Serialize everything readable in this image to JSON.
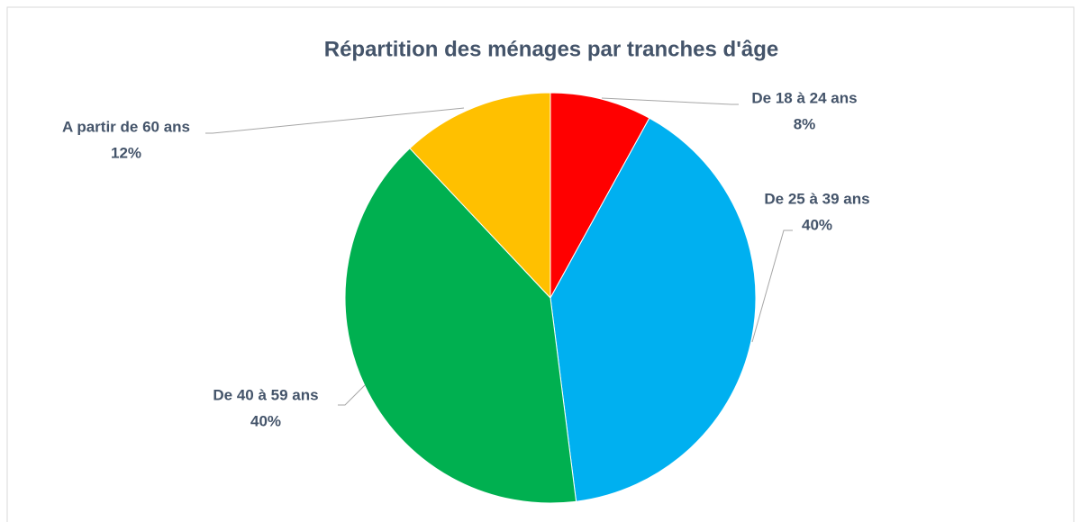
{
  "chart_data": {
    "type": "pie",
    "title": "Répartition des ménages par tranches d'âge",
    "categories": [
      "De 18 à 24 ans",
      "De 25 à 39 ans",
      "De 40 à 59 ans",
      "A partir de 60 ans"
    ],
    "values": [
      8,
      40,
      40,
      12
    ],
    "value_labels": [
      "8%",
      "40%",
      "40%",
      "12%"
    ],
    "colors": [
      "#ff0000",
      "#00b0f0",
      "#00b050",
      "#ffc000"
    ]
  }
}
